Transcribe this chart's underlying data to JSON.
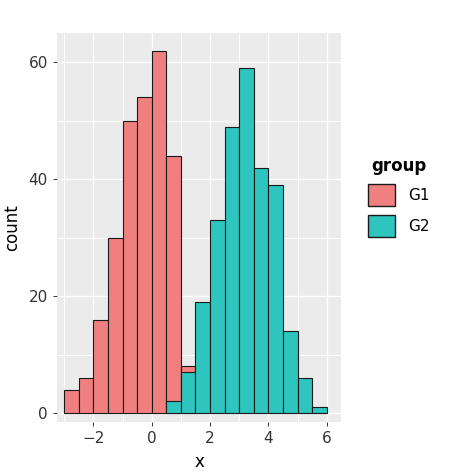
{
  "bin_width": 0.5,
  "g1_color": "#F08080",
  "g2_color": "#2DC5BE",
  "edge_color": "#1A1A1A",
  "plot_bg_color": "#EBEBEB",
  "fig_bg_color": "#FFFFFF",
  "grid_color": "#FFFFFF",
  "xlabel": "x",
  "ylabel": "count",
  "xlim": [
    -3.25,
    6.5
  ],
  "ylim": [
    -1.5,
    65
  ],
  "xticks": [
    -2,
    0,
    2,
    4,
    6
  ],
  "yticks": [
    0,
    20,
    40,
    60
  ],
  "legend_title": "group",
  "legend_labels": [
    "G1",
    "G2"
  ],
  "linewidth": 0.8,
  "g1_bars_x": [
    -2.75,
    -2.25,
    -1.75,
    -1.25,
    -0.75,
    -0.25,
    0.25,
    0.75,
    1.25
  ],
  "g1_bars_h": [
    4,
    6,
    16,
    30,
    50,
    54,
    62,
    44,
    8
  ],
  "g2_bars_x": [
    0.75,
    1.25,
    1.75,
    2.25,
    2.75,
    3.25,
    3.75,
    4.25,
    4.75,
    5.25,
    5.75
  ],
  "g2_bars_h": [
    2,
    7,
    19,
    33,
    49,
    59,
    42,
    39,
    14,
    6,
    1
  ],
  "tick_label_size": 11,
  "axis_label_size": 12
}
